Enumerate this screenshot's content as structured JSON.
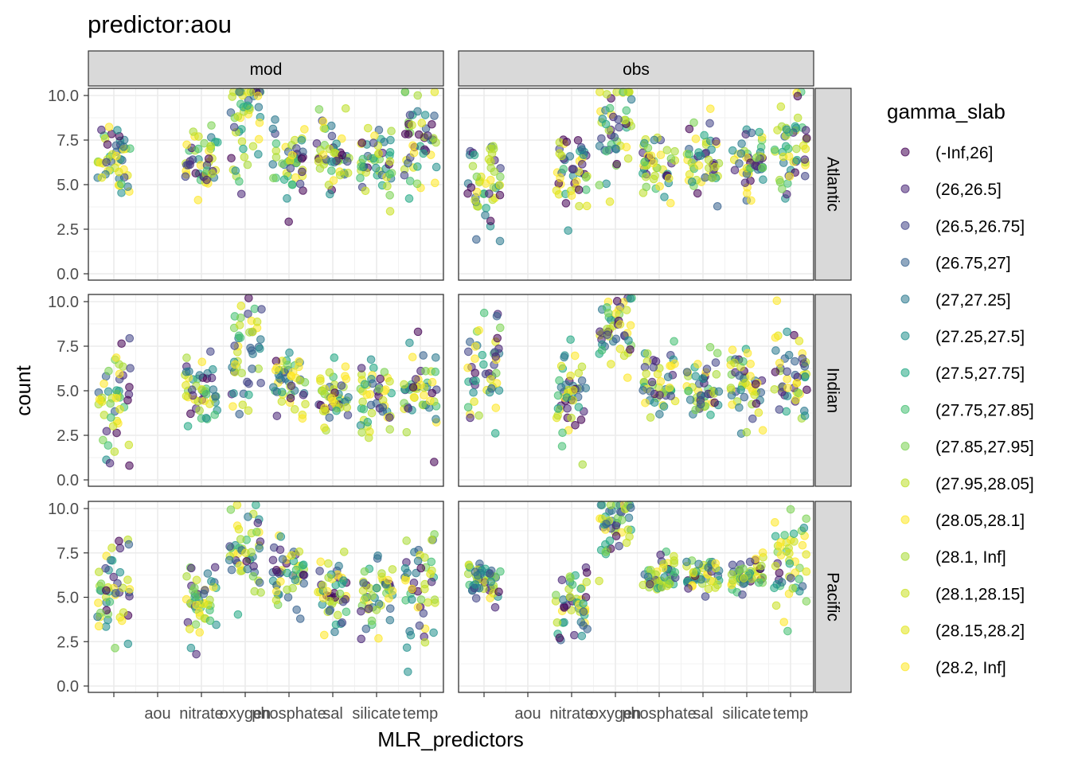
{
  "chart_data": {
    "type": "scatter",
    "title": "predictor:aou",
    "xlabel": "MLR_predictors",
    "ylabel": "count",
    "ylim": [
      0,
      10
    ],
    "y_ticks": [
      "0.0",
      "2.5",
      "5.0",
      "7.5",
      "10.0"
    ],
    "x_categories": [
      "",
      "aou",
      "nitrate",
      "oxygen",
      "phosphate",
      "sal",
      "silicate",
      "temp"
    ],
    "columns": [
      "mod",
      "obs"
    ],
    "rows": [
      "Atlantic",
      "Indian",
      "Pacific"
    ],
    "legend": {
      "title": "gamma_slab",
      "position": "right",
      "entries": [
        {
          "label": "(-Inf,26]",
          "color": "#440154"
        },
        {
          "label": "(26,26.5]",
          "color": "#482576"
        },
        {
          "label": "(26.5,26.75]",
          "color": "#414487"
        },
        {
          "label": "(26.75,27]",
          "color": "#35608D"
        },
        {
          "label": "(27,27.25]",
          "color": "#2A788E"
        },
        {
          "label": "(27.25,27.5]",
          "color": "#21908C"
        },
        {
          "label": "(27.5,27.75]",
          "color": "#22A884"
        },
        {
          "label": "(27.75,27.85]",
          "color": "#43BF71"
        },
        {
          "label": "(27.85,27.95]",
          "color": "#7AD151"
        },
        {
          "label": "(27.95,28.05]",
          "color": "#BBDF27"
        },
        {
          "label": "(28.05,28.1]",
          "color": "#FDE725"
        },
        {
          "label": "(28.1, Inf]",
          "color": "#A8DB34"
        },
        {
          "label": "(28.1,28.15]",
          "color": "#C9E020"
        },
        {
          "label": "(28.15,28.2]",
          "color": "#E2E418"
        },
        {
          "label": "(28.2, Inf]",
          "color": "#FDE725"
        }
      ]
    },
    "panels": [
      {
        "col": "mod",
        "row": "Atlantic",
        "groups": [
          {
            "x": 1,
            "mean": 6.6,
            "sd": 1.0
          },
          {
            "x": 3,
            "mean": 6.2,
            "sd": 1.0
          },
          {
            "x": 4,
            "mean": 8.6,
            "sd": 1.8
          },
          {
            "x": 5,
            "mean": 6.4,
            "sd": 1.0
          },
          {
            "x": 6,
            "mean": 6.5,
            "sd": 1.0
          },
          {
            "x": 7,
            "mean": 6.4,
            "sd": 1.0
          },
          {
            "x": 8,
            "mean": 7.4,
            "sd": 1.6
          }
        ]
      },
      {
        "col": "obs",
        "row": "Atlantic",
        "groups": [
          {
            "x": 1,
            "mean": 5.2,
            "sd": 1.6
          },
          {
            "x": 3,
            "mean": 5.6,
            "sd": 1.2
          },
          {
            "x": 4,
            "mean": 8.6,
            "sd": 1.6
          },
          {
            "x": 5,
            "mean": 6.2,
            "sd": 1.0
          },
          {
            "x": 6,
            "mean": 6.1,
            "sd": 1.0
          },
          {
            "x": 7,
            "mean": 6.2,
            "sd": 1.0
          },
          {
            "x": 8,
            "mean": 7.3,
            "sd": 1.8
          }
        ]
      },
      {
        "col": "mod",
        "row": "Indian",
        "groups": [
          {
            "x": 1,
            "mean": 4.6,
            "sd": 1.4
          },
          {
            "x": 3,
            "mean": 4.6,
            "sd": 1.1
          },
          {
            "x": 4,
            "mean": 6.8,
            "sd": 1.6
          },
          {
            "x": 5,
            "mean": 5.4,
            "sd": 0.9
          },
          {
            "x": 6,
            "mean": 4.8,
            "sd": 0.9
          },
          {
            "x": 7,
            "mean": 4.6,
            "sd": 1.0
          },
          {
            "x": 8,
            "mean": 4.9,
            "sd": 1.3
          }
        ]
      },
      {
        "col": "obs",
        "row": "Indian",
        "groups": [
          {
            "x": 1,
            "mean": 6.4,
            "sd": 1.7
          },
          {
            "x": 3,
            "mean": 5.0,
            "sd": 1.1
          },
          {
            "x": 4,
            "mean": 8.6,
            "sd": 1.2
          },
          {
            "x": 5,
            "mean": 5.3,
            "sd": 0.9
          },
          {
            "x": 6,
            "mean": 5.0,
            "sd": 0.9
          },
          {
            "x": 7,
            "mean": 5.5,
            "sd": 1.1
          },
          {
            "x": 8,
            "mean": 5.6,
            "sd": 1.5
          }
        ]
      },
      {
        "col": "mod",
        "row": "Pacific",
        "groups": [
          {
            "x": 1,
            "mean": 5.3,
            "sd": 1.3
          },
          {
            "x": 3,
            "mean": 4.8,
            "sd": 1.0
          },
          {
            "x": 4,
            "mean": 7.6,
            "sd": 1.4
          },
          {
            "x": 5,
            "mean": 5.9,
            "sd": 0.9
          },
          {
            "x": 6,
            "mean": 5.2,
            "sd": 0.9
          },
          {
            "x": 7,
            "mean": 5.1,
            "sd": 1.0
          },
          {
            "x": 8,
            "mean": 5.4,
            "sd": 1.6
          }
        ]
      },
      {
        "col": "obs",
        "row": "Pacific",
        "groups": [
          {
            "x": 1,
            "mean": 6.0,
            "sd": 0.6
          },
          {
            "x": 3,
            "mean": 4.8,
            "sd": 1.1
          },
          {
            "x": 4,
            "mean": 9.3,
            "sd": 1.0
          },
          {
            "x": 5,
            "mean": 6.2,
            "sd": 0.5
          },
          {
            "x": 6,
            "mean": 6.2,
            "sd": 0.5
          },
          {
            "x": 7,
            "mean": 6.2,
            "sd": 0.5
          },
          {
            "x": 8,
            "mean": 7.0,
            "sd": 1.4
          }
        ]
      }
    ]
  }
}
